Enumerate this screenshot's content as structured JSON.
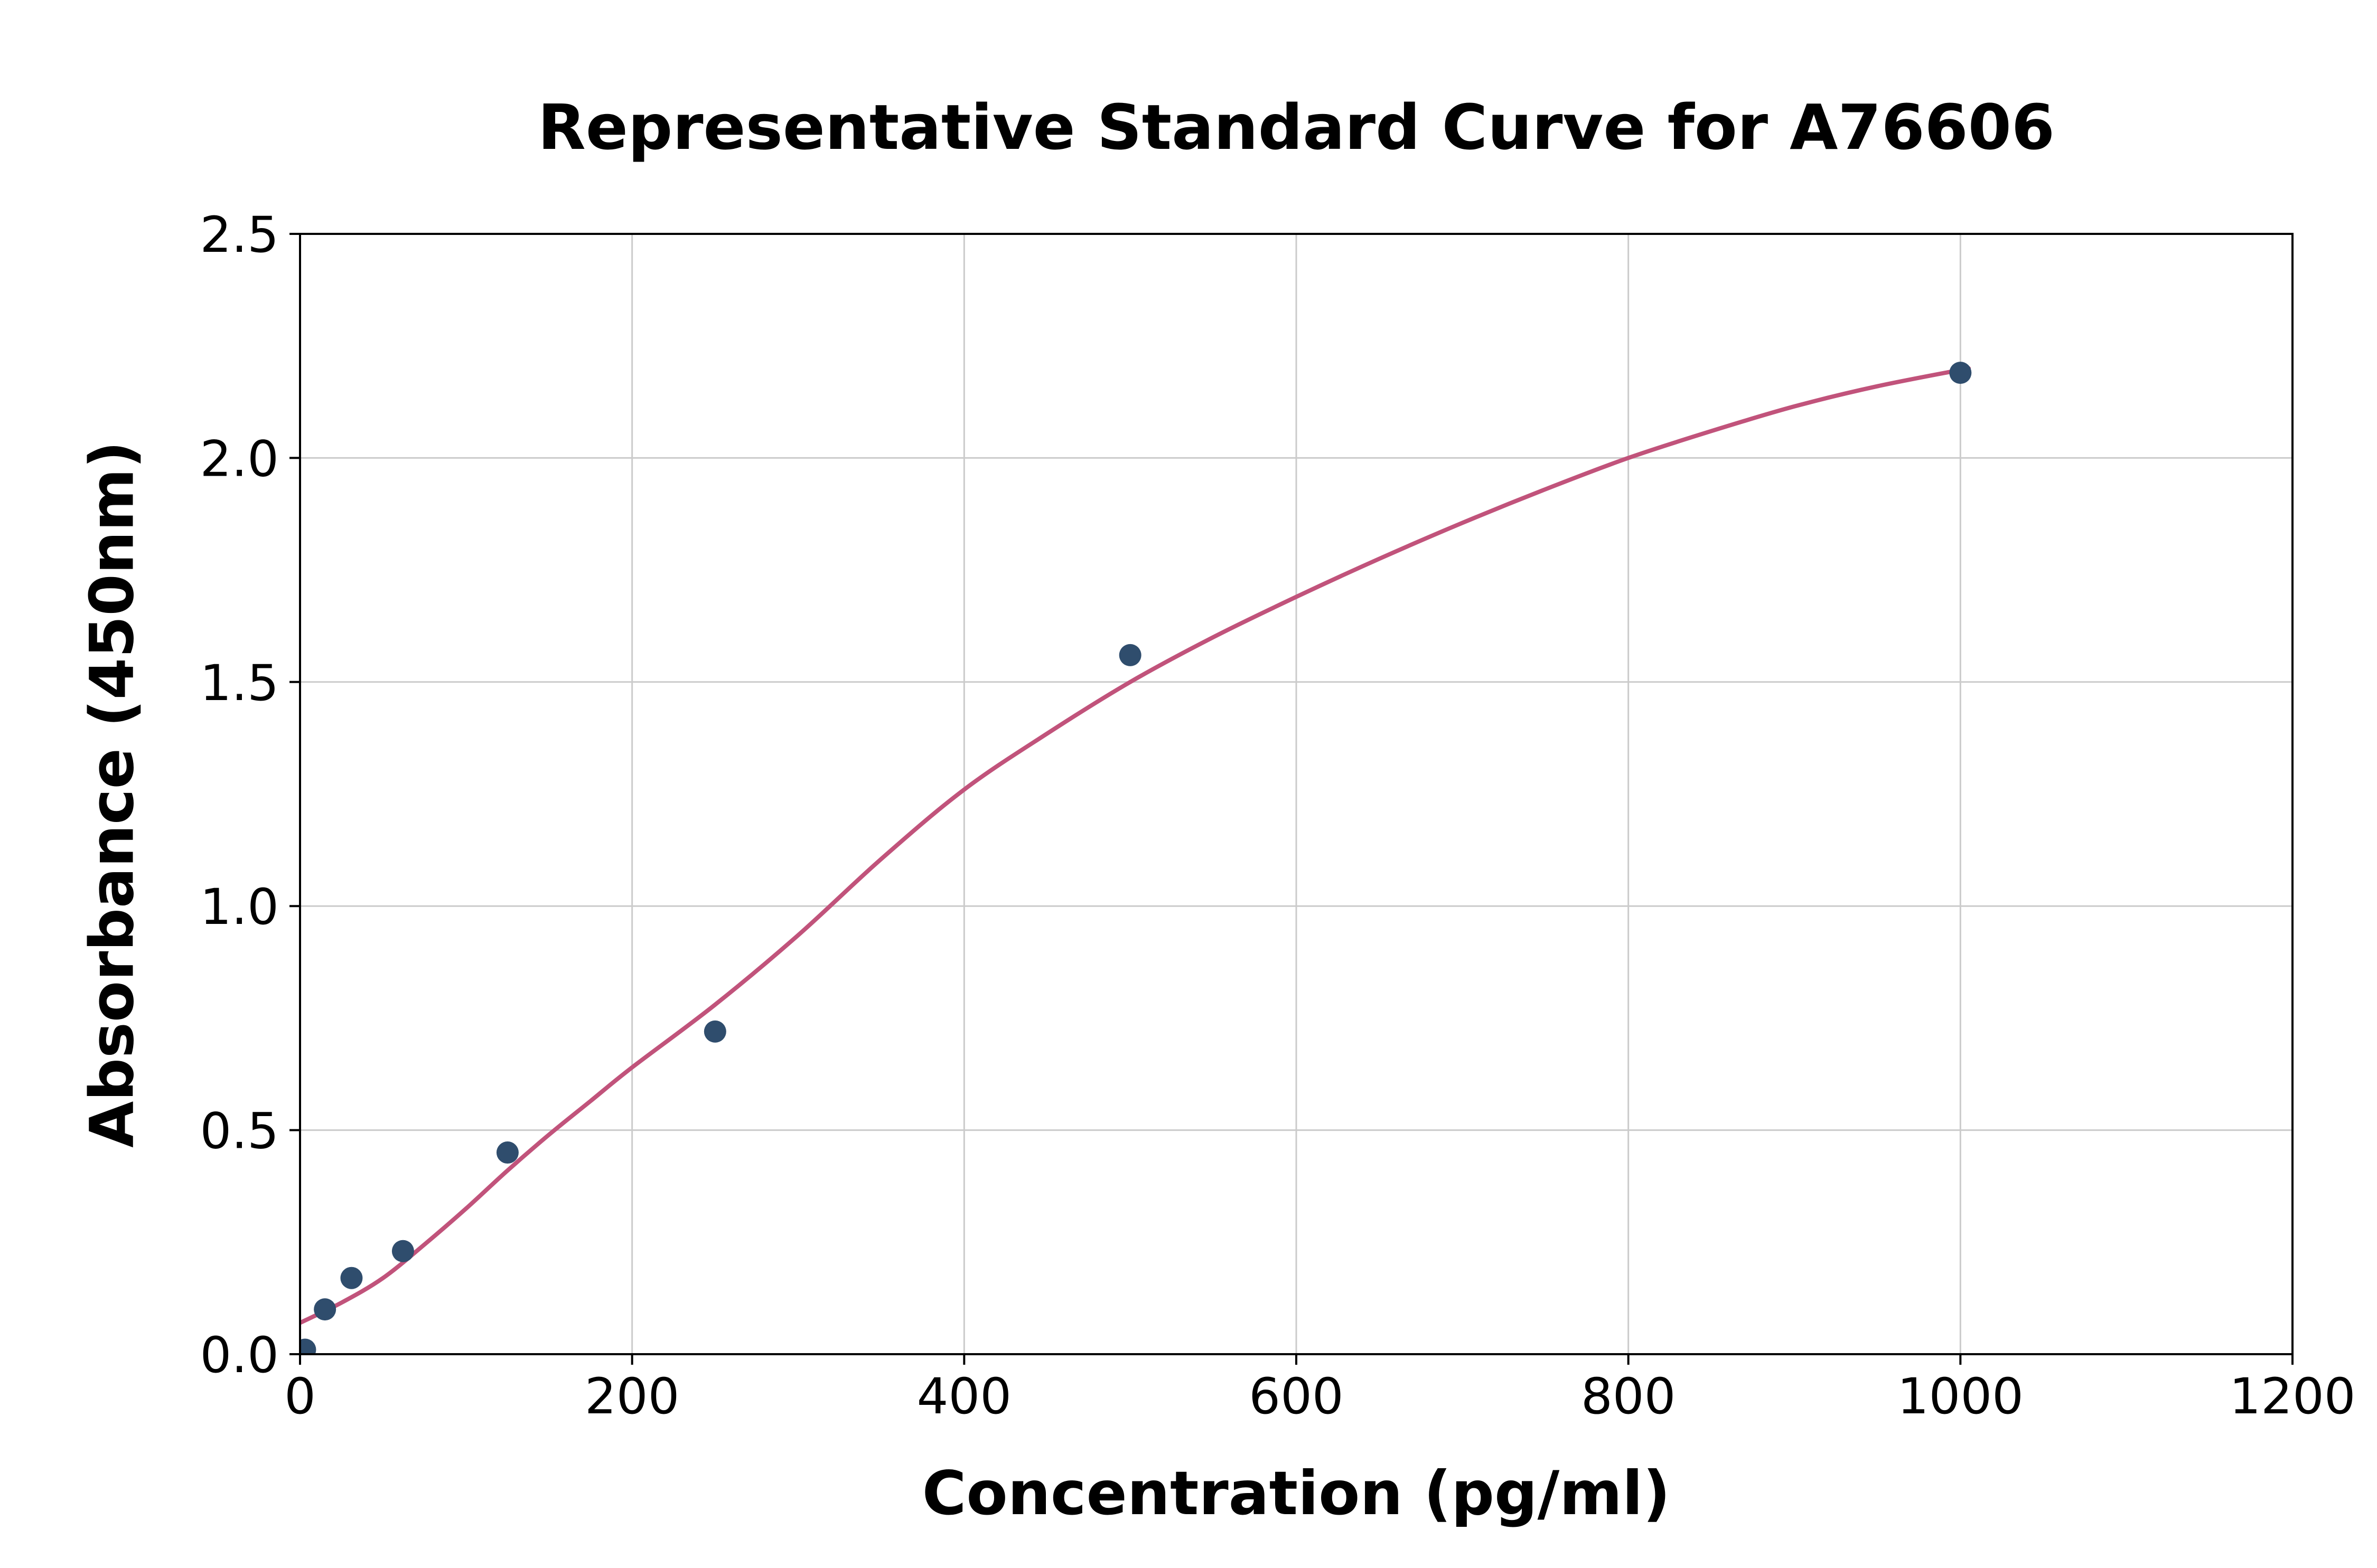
{
  "chart_data": {
    "type": "scatter",
    "title": "Representative Standard Curve for A76606",
    "xlabel": "Concentration (pg/ml)",
    "ylabel": "Absorbance (450nm)",
    "xlim": [
      0,
      1200
    ],
    "ylim": [
      0,
      2.5
    ],
    "x_ticks": [
      0,
      200,
      400,
      600,
      800,
      1000,
      1200
    ],
    "x_tick_labels": [
      "0",
      "200",
      "400",
      "600",
      "800",
      "1000",
      "1200"
    ],
    "y_ticks": [
      0,
      0.5,
      1,
      1.5,
      2,
      2.5
    ],
    "y_tick_labels": [
      "0.0",
      "0.5",
      "1.0",
      "1.5",
      "2.0",
      "2.5"
    ],
    "grid": true,
    "legend": false,
    "points": [
      [
        3,
        0.01
      ],
      [
        15,
        0.1
      ],
      [
        31,
        0.17
      ],
      [
        62,
        0.23
      ],
      [
        125,
        0.45
      ],
      [
        250,
        0.72
      ],
      [
        500,
        1.56
      ],
      [
        1000,
        2.19
      ]
    ],
    "fit_curve": [
      [
        0,
        0.07
      ],
      [
        25,
        0.115
      ],
      [
        50,
        0.17
      ],
      [
        75,
        0.245
      ],
      [
        100,
        0.325
      ],
      [
        125,
        0.41
      ],
      [
        150,
        0.49
      ],
      [
        175,
        0.565
      ],
      [
        200,
        0.64
      ],
      [
        250,
        0.78
      ],
      [
        300,
        0.935
      ],
      [
        350,
        1.105
      ],
      [
        400,
        1.26
      ],
      [
        450,
        1.385
      ],
      [
        500,
        1.5
      ],
      [
        550,
        1.6
      ],
      [
        600,
        1.69
      ],
      [
        650,
        1.775
      ],
      [
        700,
        1.855
      ],
      [
        750,
        1.93
      ],
      [
        800,
        2.0
      ],
      [
        850,
        2.06
      ],
      [
        900,
        2.115
      ],
      [
        950,
        2.16
      ],
      [
        1005,
        2.2
      ]
    ],
    "colors": {
      "points": "#2f4d6d",
      "curve": "#c1537b",
      "grid": "#cbcbcb",
      "axis": "#000000"
    }
  }
}
